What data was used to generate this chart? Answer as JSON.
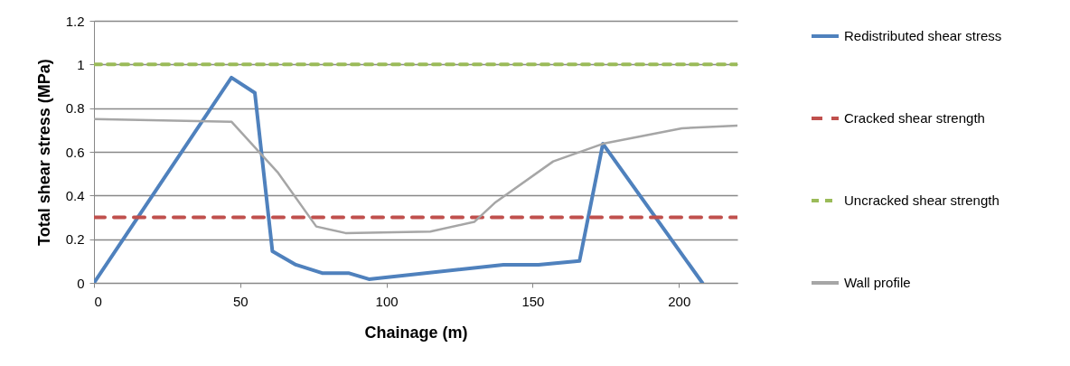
{
  "chart_data": {
    "type": "line",
    "xlabel": "Chainage (m)",
    "ylabel": "Total shear stress (MPa)",
    "xlim": [
      0,
      220
    ],
    "xticks": [
      0,
      50,
      100,
      150,
      200
    ],
    "ylim": [
      0,
      1.2
    ],
    "yticks": [
      0,
      0.2,
      0.4,
      0.6,
      0.8,
      1,
      1.2
    ],
    "grid": "y",
    "legend": "right",
    "marker": "none",
    "series": [
      {
        "name": "Redistributed shear stress",
        "color": "#4f81bd",
        "line_style": "solid",
        "x": [
          0,
          47,
          55,
          61,
          69,
          78,
          87,
          94,
          140,
          152,
          166,
          174,
          208
        ],
        "values": [
          0,
          0.94,
          0.87,
          0.145,
          0.083,
          0.045,
          0.045,
          0.017,
          0.083,
          0.083,
          0.1,
          0.637,
          0
        ]
      },
      {
        "name": "Cracked shear strength",
        "color": "#c0504d",
        "line_style": "dashed",
        "x": [
          0,
          220
        ],
        "values": [
          0.3,
          0.3
        ]
      },
      {
        "name": "Uncracked shear strength",
        "color": "#9bbb59",
        "line_style": "dotted",
        "x": [
          0,
          220
        ],
        "values": [
          1,
          1
        ]
      },
      {
        "name": "Wall profile",
        "color": "#a6a6a6",
        "line_style": "solid",
        "x": [
          0,
          47,
          63,
          76,
          86,
          115,
          130,
          137,
          157,
          174,
          201,
          220
        ],
        "values": [
          0.75,
          0.738,
          0.503,
          0.258,
          0.228,
          0.235,
          0.279,
          0.366,
          0.556,
          0.637,
          0.708,
          0.72
        ]
      }
    ]
  }
}
